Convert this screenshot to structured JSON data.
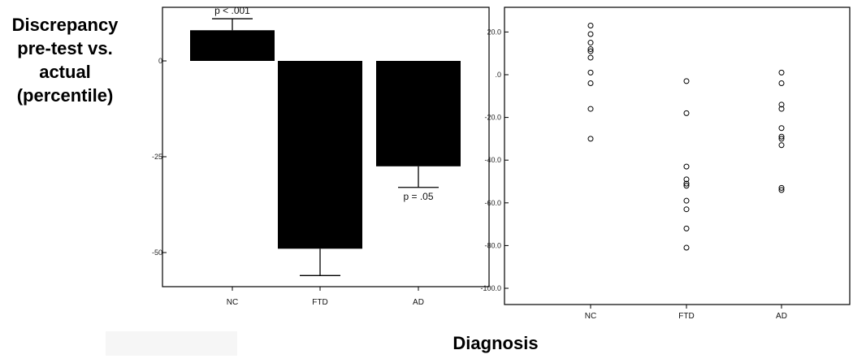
{
  "ylabel_lines": [
    "Discrepancy",
    "pre-test vs.",
    "actual",
    "(percentile)"
  ],
  "xlabel": "Diagnosis",
  "chart_data": [
    {
      "type": "bar",
      "categories": [
        "NC",
        "FTD",
        "AD"
      ],
      "values": [
        8,
        -49,
        -27.5
      ],
      "error_bars": [
        3,
        7,
        5.5
      ],
      "y_tick_labels": [
        "0",
        "-25",
        "-50"
      ],
      "ylim": [
        -58,
        12
      ],
      "annotations": [
        {
          "category": "NC",
          "text": "p < .001"
        },
        {
          "category": "AD",
          "text": "p = .05"
        }
      ],
      "bar_color": "#000000"
    },
    {
      "type": "scatter",
      "categories": [
        "NC",
        "FTD",
        "AD"
      ],
      "series": [
        {
          "category": "NC",
          "values": [
            23,
            19,
            15,
            12,
            11,
            8,
            1,
            -4,
            -16,
            -30
          ]
        },
        {
          "category": "FTD",
          "values": [
            -3,
            -18,
            -43,
            -49,
            -51,
            -52,
            -59,
            -63,
            -72,
            -81
          ]
        },
        {
          "category": "AD",
          "values": [
            1,
            -4,
            -14,
            -16,
            -25,
            -29,
            -30,
            -33,
            -53,
            -54
          ]
        }
      ],
      "y_ticks": [
        20,
        0,
        -20,
        -40,
        -60,
        -80,
        -100
      ],
      "y_tick_labels": [
        "20.0",
        ".0",
        "-20.0",
        "-40.0",
        "-60.0",
        "-80.0",
        "-100.0"
      ],
      "ylim": [
        -100,
        26
      ],
      "marker": "open-circle"
    }
  ]
}
